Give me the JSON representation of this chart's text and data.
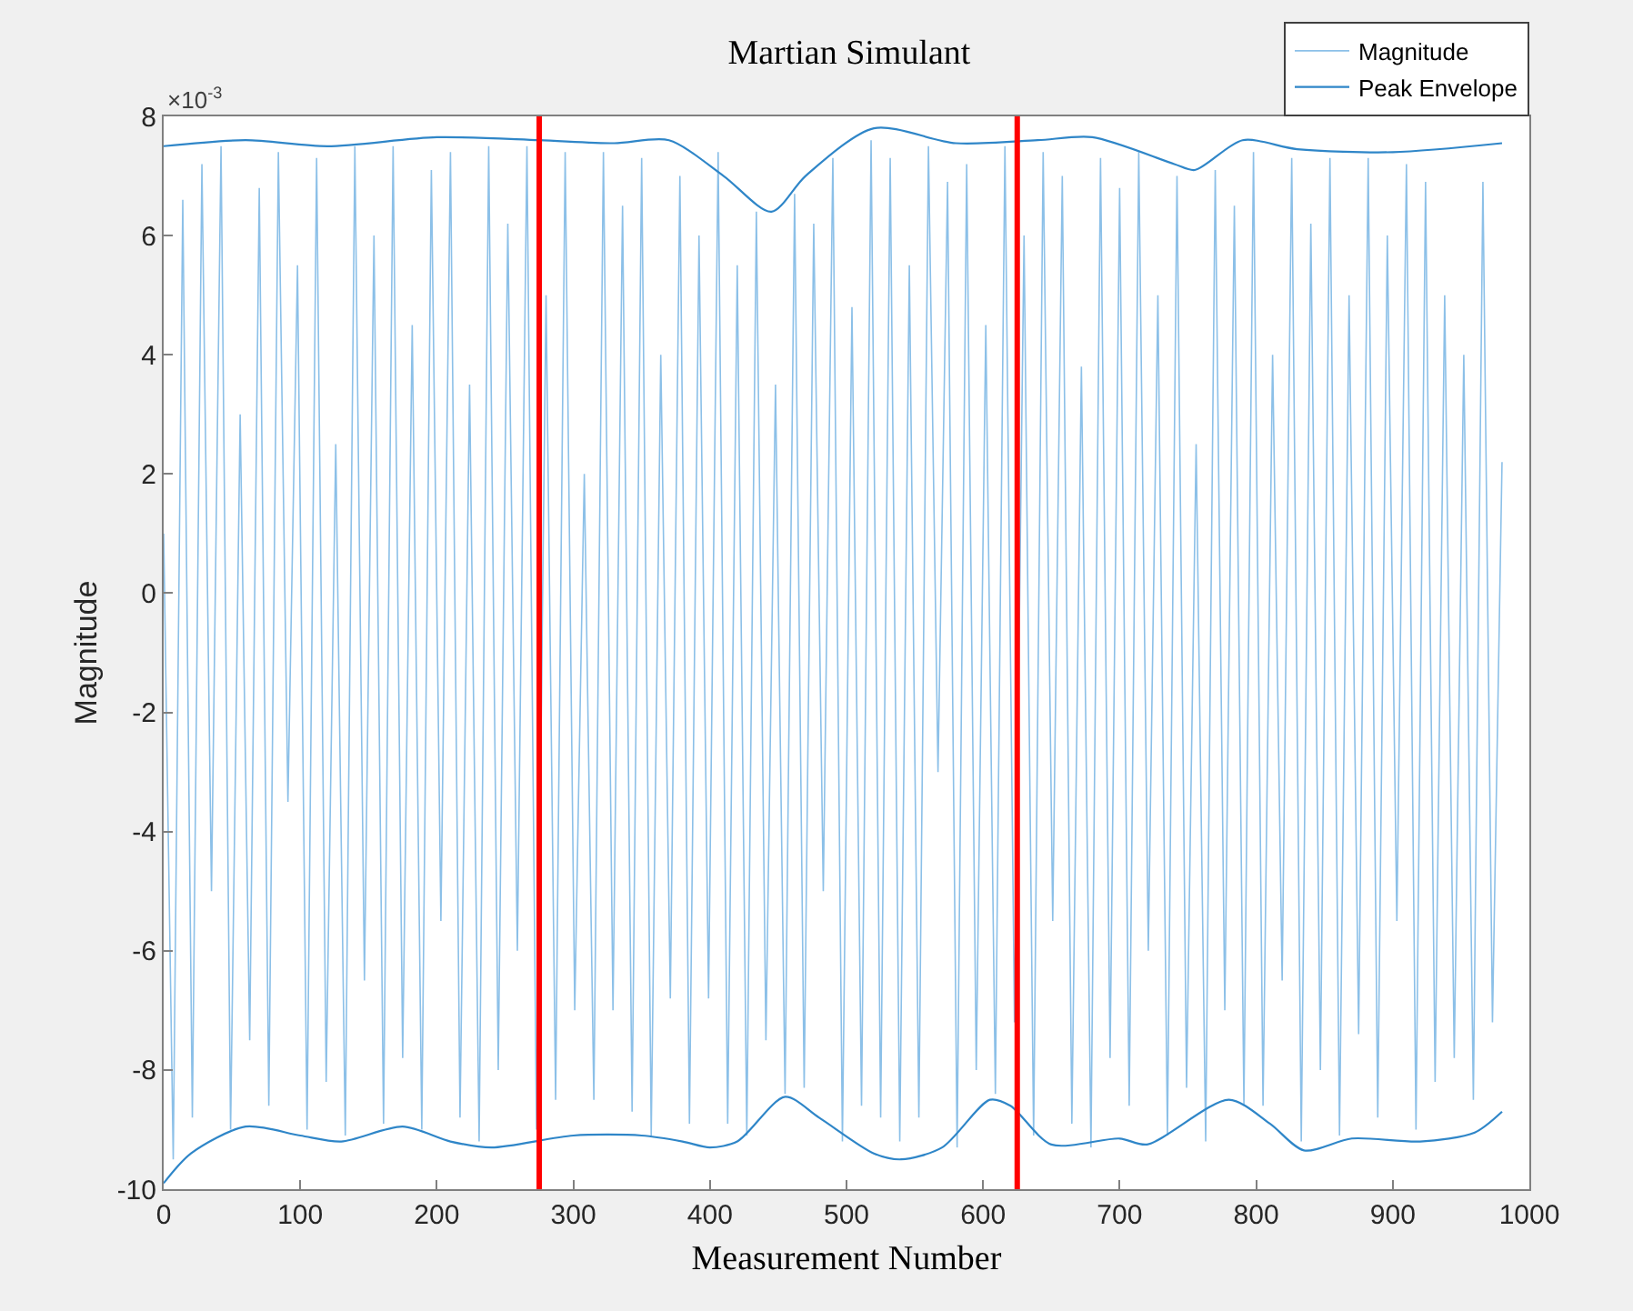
{
  "chart_data": {
    "type": "line",
    "title": "Martian Simulant",
    "xlabel": "Measurement Number",
    "ylabel": "Magnitude",
    "annotations": [
      "×10$^{-3}$"
    ],
    "xlim": [
      0,
      1000
    ],
    "xticks": [
      0,
      100,
      200,
      300,
      400,
      500,
      600,
      700,
      800,
      900,
      1000
    ],
    "ylim": [
      -10,
      8
    ],
    "yticks": [
      -10,
      -8,
      -6,
      -4,
      -2,
      0,
      2,
      4,
      6,
      8
    ],
    "legend": "top right",
    "ref_lines": [
      {
        "axis": "x",
        "value": 275,
        "color": "#ff0000"
      },
      {
        "axis": "x",
        "value": 625,
        "color": "#ff0000"
      }
    ],
    "series": [
      {
        "name": "Magnitude",
        "color": "#8cc0e8",
        "x": [
          0,
          7,
          14,
          21,
          28,
          35,
          42,
          49,
          56,
          63,
          70,
          77,
          84,
          91,
          98,
          105,
          112,
          119,
          126,
          133,
          140,
          147,
          154,
          161,
          168,
          175,
          182,
          189,
          196,
          203,
          210,
          217,
          224,
          231,
          238,
          245,
          252,
          259,
          266,
          273,
          280,
          287,
          294,
          301,
          308,
          315,
          322,
          329,
          336,
          343,
          350,
          357,
          364,
          371,
          378,
          385,
          392,
          399,
          406,
          413,
          420,
          427,
          434,
          441,
          448,
          455,
          462,
          469,
          476,
          483,
          490,
          497,
          504,
          511,
          518,
          525,
          532,
          539,
          546,
          553,
          560,
          567,
          574,
          581,
          588,
          595,
          602,
          609,
          616,
          623,
          630,
          637,
          644,
          651,
          658,
          665,
          672,
          679,
          686,
          693,
          700,
          707,
          714,
          721,
          728,
          735,
          742,
          749,
          756,
          763,
          770,
          777,
          784,
          791,
          798,
          805,
          812,
          819,
          826,
          833,
          840,
          847,
          854,
          861,
          868,
          875,
          882,
          889,
          896,
          903,
          910,
          917,
          924,
          931,
          938,
          945,
          952,
          959,
          966,
          973,
          980
        ],
        "values": [
          1.0,
          -9.5,
          6.6,
          -8.8,
          7.2,
          -5.0,
          7.5,
          -9.0,
          3.0,
          -7.5,
          6.8,
          -8.6,
          7.4,
          -3.5,
          5.5,
          -9.0,
          7.3,
          -8.2,
          2.5,
          -9.1,
          7.5,
          -6.5,
          6.0,
          -8.9,
          7.5,
          -7.8,
          4.5,
          -9.0,
          7.1,
          -5.5,
          7.4,
          -8.8,
          3.5,
          -9.2,
          7.5,
          -8.0,
          6.2,
          -6.0,
          7.5,
          -9.0,
          5.0,
          -8.5,
          7.4,
          -7.0,
          2.0,
          -8.5,
          7.4,
          -7.0,
          6.5,
          -8.7,
          7.3,
          -9.1,
          4.0,
          -6.8,
          7.0,
          -8.9,
          6.0,
          -6.8,
          7.4,
          -8.9,
          5.5,
          -9.1,
          6.4,
          -7.5,
          3.5,
          -8.4,
          6.7,
          -8.3,
          6.2,
          -5.0,
          7.3,
          -9.2,
          4.8,
          -8.6,
          7.6,
          -8.8,
          7.3,
          -9.2,
          5.5,
          -8.8,
          7.5,
          -3.0,
          6.9,
          -9.3,
          7.2,
          -8.0,
          4.5,
          -8.4,
          7.5,
          -7.2,
          6.0,
          -9.1,
          7.4,
          -5.5,
          7.0,
          -8.9,
          3.8,
          -9.3,
          7.3,
          -7.8,
          6.8,
          -8.6,
          7.4,
          -6.0,
          5.0,
          -9.1,
          7.0,
          -8.3,
          2.5,
          -9.2,
          7.1,
          -7.0,
          6.5,
          -8.6,
          7.4,
          -8.6,
          4.0,
          -6.5,
          7.3,
          -9.2,
          6.2,
          -8.0,
          7.3,
          -9.1,
          5.0,
          -7.4,
          7.3,
          -8.8,
          6.0,
          -5.5,
          7.2,
          -9.0,
          6.9,
          -8.2,
          5.0,
          -7.8,
          4.0,
          -8.5,
          6.9,
          -7.2,
          2.2
        ]
      },
      {
        "name": "Peak Envelope",
        "color": "#2f86c8",
        "x": [
          0,
          60,
          120,
          200,
          275,
          330,
          370,
          410,
          445,
          470,
          520,
          580,
          640,
          680,
          740,
          755,
          790,
          830,
          900,
          980
        ],
        "values": [
          7.5,
          7.6,
          7.5,
          7.65,
          7.6,
          7.55,
          7.6,
          7.0,
          6.4,
          7.0,
          7.8,
          7.55,
          7.6,
          7.65,
          7.2,
          7.1,
          7.6,
          7.45,
          7.4,
          7.55
        ]
      },
      {
        "color": "#2f86c8",
        "x": [
          0,
          20,
          60,
          100,
          130,
          175,
          210,
          240,
          300,
          350,
          380,
          400,
          420,
          455,
          480,
          520,
          540,
          570,
          605,
          620,
          650,
          700,
          720,
          780,
          810,
          835,
          870,
          920,
          960,
          980
        ],
        "values": [
          -9.9,
          -9.4,
          -8.95,
          -9.1,
          -9.2,
          -8.95,
          -9.2,
          -9.3,
          -9.1,
          -9.1,
          -9.2,
          -9.3,
          -9.2,
          -8.45,
          -8.8,
          -9.4,
          -9.5,
          -9.3,
          -8.5,
          -8.6,
          -9.25,
          -9.15,
          -9.25,
          -8.5,
          -8.9,
          -9.35,
          -9.15,
          -9.2,
          -9.05,
          -8.7
        ]
      }
    ]
  }
}
